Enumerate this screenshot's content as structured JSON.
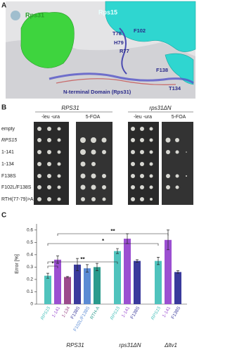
{
  "panel_a": {
    "letter": "A",
    "rps31": "Rps31",
    "rps15": "Rps15",
    "residues": [
      "T78",
      "F102",
      "H79",
      "R77",
      "F138",
      "T134"
    ],
    "domain": "N-terminal Domain (Rps31)"
  },
  "panel_b": {
    "letter": "B",
    "strains": [
      "RPS31",
      "rps31ΔN"
    ],
    "media": [
      "-leu -ura",
      "5-FOA",
      "-leu -ura",
      "5-FOA"
    ],
    "rows": [
      "empty",
      "RPS15",
      "1-141",
      "1-134",
      "F138S",
      "F102L/F138S",
      "RTH(77-79)>A"
    ]
  },
  "chart_data": {
    "type": "grouped-bar",
    "letter": "C",
    "ylabel": "Error [%]",
    "ylim": [
      0,
      0.65
    ],
    "yticks": [
      0,
      0.1,
      0.2,
      0.3,
      0.4,
      0.5,
      0.6
    ],
    "groups": [
      {
        "name": "RPS31",
        "bars": [
          {
            "label": "RPS15",
            "color": "#4fc3bd",
            "value": 0.23,
            "error": 0.02
          },
          {
            "label": "1-141",
            "color": "#9b4fd1",
            "value": 0.36,
            "error": 0.03
          },
          {
            "label": "1-134",
            "color": "#9c4a8c",
            "value": 0.22,
            "error": 0.005
          },
          {
            "label": "F138S",
            "color": "#3a3a9c",
            "value": 0.32,
            "error": 0.05
          },
          {
            "label": "F102L/F138S",
            "color": "#5b8bd4",
            "value": 0.29,
            "error": 0.03
          },
          {
            "label": "RTH-A",
            "color": "#2a9a8c",
            "value": 0.3,
            "error": 0.03
          }
        ]
      },
      {
        "name": "rps31ΔN",
        "bars": [
          {
            "label": "RPS15",
            "color": "#4fc3bd",
            "value": 0.43,
            "error": 0.02
          },
          {
            "label": "1-141",
            "color": "#9b4fd1",
            "value": 0.53,
            "error": 0.04
          },
          {
            "label": "F138S",
            "color": "#3a3a9c",
            "value": 0.35,
            "error": 0.01
          }
        ]
      },
      {
        "name": "Δltv1",
        "bars": [
          {
            "label": "RPS15",
            "color": "#4fc3bd",
            "value": 0.35,
            "error": 0.03
          },
          {
            "label": "1-141",
            "color": "#9b4fd1",
            "value": 0.52,
            "error": 0.08
          },
          {
            "label": "F138S",
            "color": "#3a3a9c",
            "value": 0.26,
            "error": 0.01
          }
        ]
      }
    ],
    "annotations": [
      {
        "text": "**"
      },
      {
        "text": "*"
      },
      {
        "text": "**"
      },
      {
        "text": "*"
      }
    ]
  }
}
